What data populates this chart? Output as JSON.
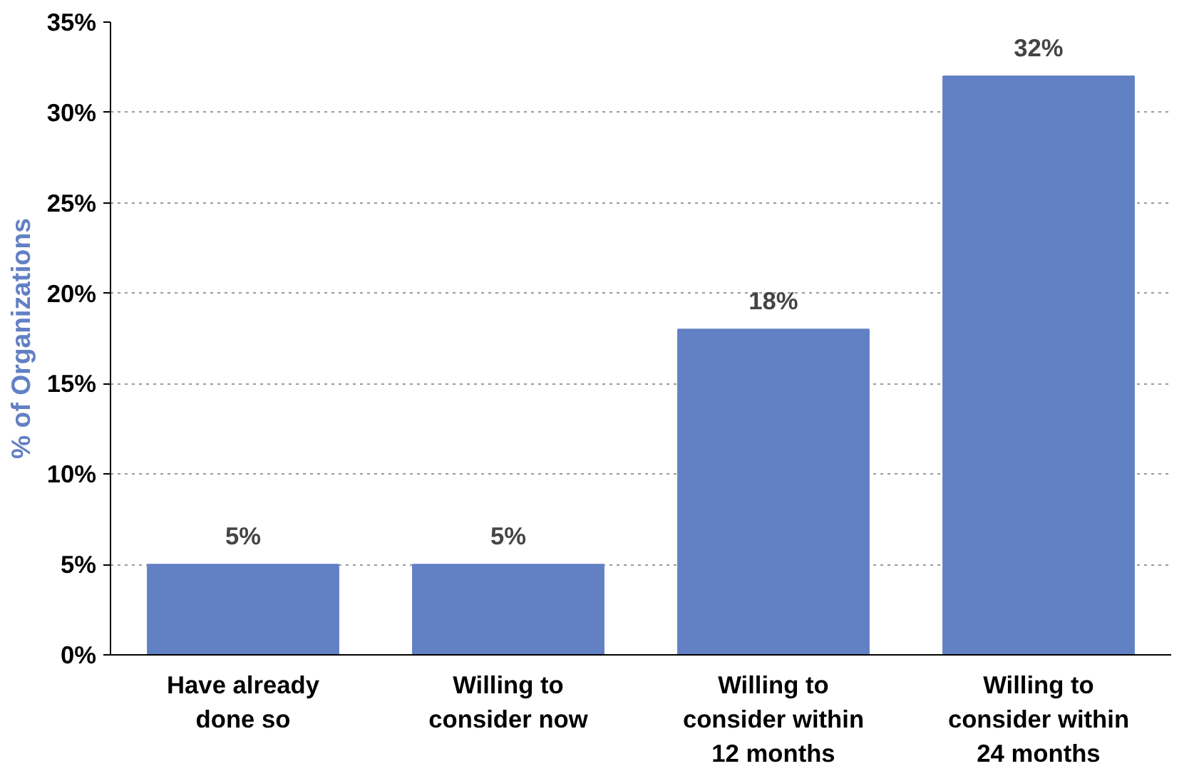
{
  "chart_data": {
    "type": "bar",
    "ylabel": "% of Organizations",
    "categories": [
      "Have already\ndone so",
      "Willing to\nconsider now",
      "Willing to\nconsider within\n12 months",
      "Willing to\nconsider within\n24 months"
    ],
    "values": [
      5,
      5,
      18,
      32
    ],
    "value_labels": [
      "5%",
      "5%",
      "18%",
      "32%"
    ],
    "color": "#6280c4",
    "ylim": [
      0,
      35
    ],
    "yticks": [
      {
        "value": 0,
        "label": "0%"
      },
      {
        "value": 5,
        "label": "5%"
      },
      {
        "value": 10,
        "label": "10%"
      },
      {
        "value": 15,
        "label": "15%"
      },
      {
        "value": 20,
        "label": "20%"
      },
      {
        "value": 25,
        "label": "25%"
      },
      {
        "value": 30,
        "label": "30%"
      },
      {
        "value": 35,
        "label": "35%"
      }
    ],
    "grid": "y"
  }
}
